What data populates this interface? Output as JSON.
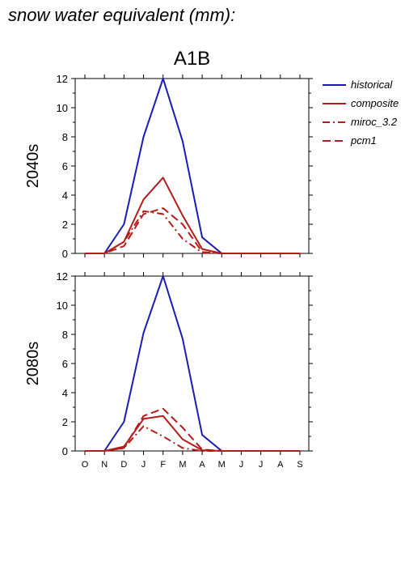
{
  "page_title": "snow water equivalent (mm):",
  "colors": {
    "historical": "#1c1cb4",
    "projection": "#b41c1c",
    "frame": "#000000"
  },
  "chart_data": [
    {
      "type": "line",
      "title": "A1B",
      "ylabel": "2040s",
      "ylim": [
        0,
        12
      ],
      "yticks": [
        0,
        2,
        4,
        6,
        8,
        10,
        12
      ],
      "categories": [
        "O",
        "N",
        "D",
        "J",
        "F",
        "M",
        "A",
        "M",
        "J",
        "J",
        "A",
        "S"
      ],
      "grid": false,
      "legend_position": "right",
      "series": [
        {
          "name": "historical",
          "color": "#1c1cb4",
          "dash": "solid",
          "values": [
            0,
            0,
            2.0,
            8.0,
            12.0,
            7.7,
            1.1,
            0,
            0,
            0,
            0,
            0
          ]
        },
        {
          "name": "composite",
          "color": "#b41c1c",
          "dash": "solid",
          "values": [
            0,
            0,
            0.8,
            3.7,
            5.2,
            2.6,
            0.3,
            0,
            0,
            0,
            0,
            0
          ]
        },
        {
          "name": "miroc_3.2",
          "color": "#b41c1c",
          "dash": "dashdot",
          "values": [
            0,
            0,
            0.8,
            2.9,
            2.7,
            1.0,
            0.05,
            0,
            0,
            0,
            0,
            0
          ]
        },
        {
          "name": "pcm1",
          "color": "#b41c1c",
          "dash": "dash",
          "values": [
            0,
            0,
            0.5,
            2.7,
            3.1,
            2.0,
            0.1,
            0,
            0,
            0,
            0,
            0
          ]
        }
      ]
    },
    {
      "type": "line",
      "title": "",
      "ylabel": "2080s",
      "ylim": [
        0,
        12
      ],
      "yticks": [
        0,
        2,
        4,
        6,
        8,
        10,
        12
      ],
      "categories": [
        "O",
        "N",
        "D",
        "J",
        "F",
        "M",
        "A",
        "M",
        "J",
        "J",
        "A",
        "S"
      ],
      "grid": false,
      "series": [
        {
          "name": "historical",
          "color": "#1c1cb4",
          "dash": "solid",
          "values": [
            0,
            0,
            2.0,
            8.1,
            12.0,
            7.7,
            1.1,
            0,
            0,
            0,
            0,
            0
          ]
        },
        {
          "name": "composite",
          "color": "#b41c1c",
          "dash": "solid",
          "values": [
            0,
            0,
            0.3,
            2.2,
            2.4,
            0.8,
            0.05,
            0,
            0,
            0,
            0,
            0
          ]
        },
        {
          "name": "miroc_3.2",
          "color": "#b41c1c",
          "dash": "dashdot",
          "values": [
            0,
            0,
            0.2,
            1.7,
            1.0,
            0.2,
            0,
            0,
            0,
            0,
            0,
            0
          ]
        },
        {
          "name": "pcm1",
          "color": "#b41c1c",
          "dash": "dash",
          "values": [
            0,
            0,
            0.2,
            2.4,
            2.9,
            1.6,
            0.1,
            0,
            0,
            0,
            0,
            0
          ]
        }
      ]
    }
  ]
}
